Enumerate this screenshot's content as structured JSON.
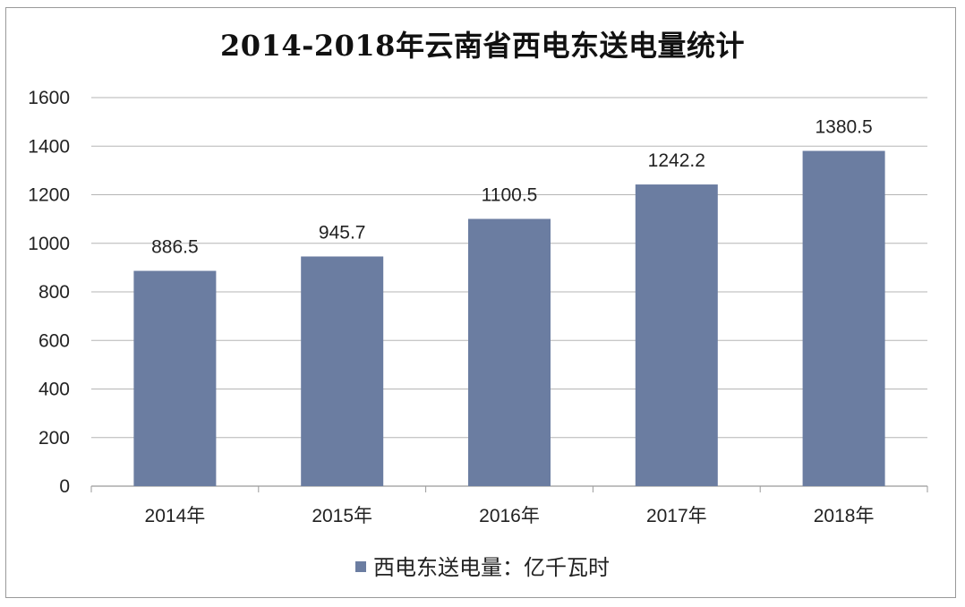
{
  "chart_data": {
    "type": "bar",
    "title": "2014-2018年云南省西电东送电量统计",
    "categories": [
      "2014年",
      "2015年",
      "2016年",
      "2017年",
      "2018年"
    ],
    "series": [
      {
        "name": "西电东送电量：亿千瓦时",
        "values": [
          886.5,
          945.7,
          1100.5,
          1242.2,
          1380.5
        ],
        "color": "#6b7da1"
      }
    ],
    "data_labels": [
      "886.5",
      "945.7",
      "1100.5",
      "1242.2",
      "1380.5"
    ],
    "ylim": [
      0,
      1600
    ],
    "yticks": [
      0,
      200,
      400,
      600,
      800,
      1000,
      1200,
      1400,
      1600
    ],
    "grid": true,
    "legend_position": "bottom",
    "xlabel": "",
    "ylabel": ""
  }
}
